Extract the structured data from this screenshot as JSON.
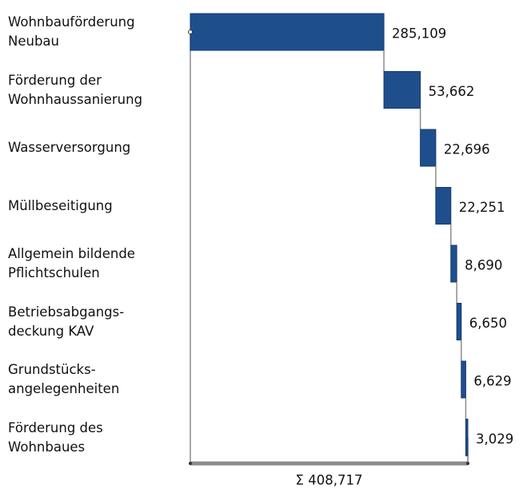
{
  "chart_data": {
    "type": "waterfall",
    "categories": [
      "Wohnbauförderung\nNeubau",
      "Förderung der\nWohnhaussanierung",
      "Wasserversorgung",
      "Müllbeseitigung",
      "Allgemein bildende\nPflichtschulen",
      "Betriebsabgangs-\ndeckung KAV",
      "Grundstücks-\nangelegenheiten",
      "Förderung des\nWohnbaues"
    ],
    "values": [
      285109,
      53662,
      22696,
      22251,
      8690,
      6650,
      6629,
      3029
    ],
    "value_labels": [
      "285,109",
      "53,662",
      "22,696",
      "22,251",
      "8,690",
      "6,650",
      "6,629",
      "3,029"
    ],
    "color": "#1f4e8c",
    "total": {
      "value": 408717,
      "label": "Σ 408,717"
    },
    "total_color": "#8c8c8c"
  }
}
